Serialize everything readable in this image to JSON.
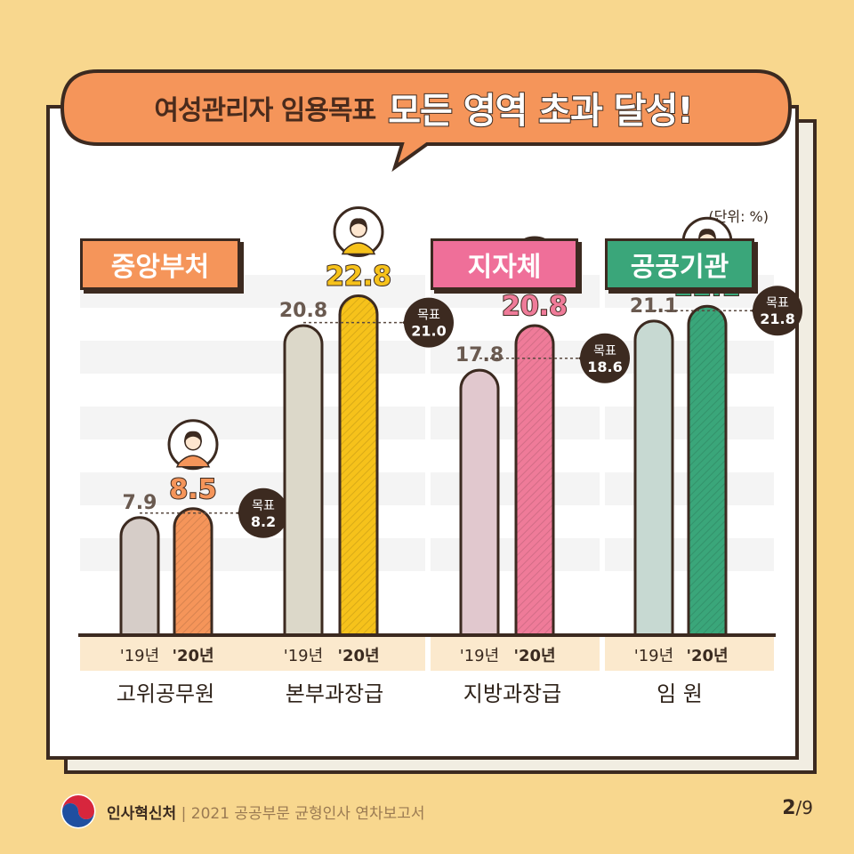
{
  "headline": {
    "part1": "여성관리자 임용목표",
    "part2": "모든 영역 초과 달성!"
  },
  "unit_label": "(단위: %)",
  "categories_header": [
    {
      "label": "중앙부처",
      "color": "#f5955a"
    },
    {
      "label": "지자체",
      "color": "#ef6f99"
    },
    {
      "label": "공공기관",
      "color": "#3aa67a"
    }
  ],
  "chart_data": {
    "type": "bar",
    "ylim": [
      0,
      30
    ],
    "grid": true,
    "groups": [
      {
        "name": "고위공무원",
        "section": "중앙부처",
        "x_labels": [
          "'19년",
          "'20년"
        ],
        "values": [
          7.9,
          8.5
        ],
        "target": 8.2,
        "target_label": "목표",
        "color_19": "#d6cdc8",
        "color_20": "#f5955a"
      },
      {
        "name": "본부과장급",
        "section": "중앙부처",
        "x_labels": [
          "'19년",
          "'20년"
        ],
        "values": [
          20.8,
          22.8
        ],
        "target": 21.0,
        "target_label": "목표",
        "color_19": "#dcd8c9",
        "color_20": "#f6c21b"
      },
      {
        "name": "지방과장급",
        "section": "지자체",
        "x_labels": [
          "'19년",
          "'20년"
        ],
        "values": [
          17.8,
          20.8
        ],
        "target": 18.6,
        "target_label": "목표",
        "color_19": "#e1c8ce",
        "color_20": "#ef7b99"
      },
      {
        "name": "임 원",
        "section": "공공기관",
        "x_labels": [
          "'19년",
          "'20년"
        ],
        "values": [
          21.1,
          22.1
        ],
        "target": 21.8,
        "target_label": "목표",
        "color_19": "#c7d9d2",
        "color_20": "#3aa67a"
      }
    ]
  },
  "footer": {
    "org": "인사혁신처",
    "separator": "|",
    "report": "2021 공공부문 균형인사 연차보고서",
    "page_current": "2",
    "page_total": "/9"
  }
}
